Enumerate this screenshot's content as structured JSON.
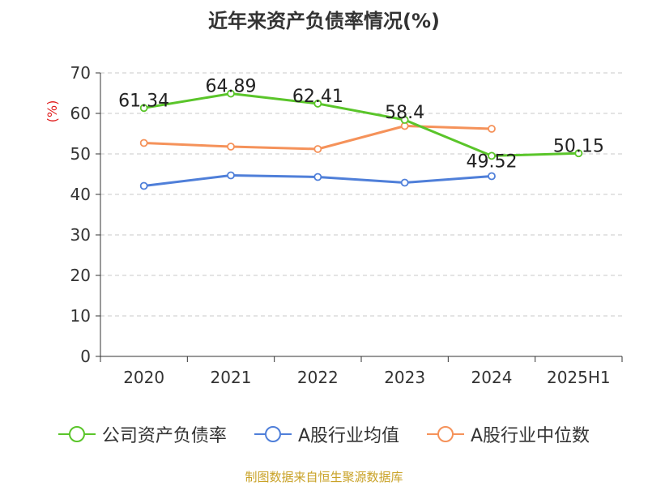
{
  "chart_data": {
    "type": "line",
    "title": "近年来资产负债率情况(%)",
    "ylabel": "(%)",
    "categories": [
      "2020",
      "2021",
      "2022",
      "2023",
      "2024",
      "2025H1"
    ],
    "ylim": [
      0,
      70
    ],
    "yticks": [
      0,
      10,
      20,
      30,
      40,
      50,
      60,
      70
    ],
    "grid": true,
    "legend_position": "bottom",
    "series": [
      {
        "name": "公司资产负债率",
        "color": "#5ac52a",
        "values": [
          61.34,
          64.89,
          62.41,
          58.4,
          49.52,
          50.15
        ],
        "labels": [
          "61.34",
          "64.89",
          "62.41",
          "58.4",
          "49.52",
          "50.15"
        ]
      },
      {
        "name": "A股行业均值",
        "color": "#4f7fd9",
        "values": [
          42.1,
          44.7,
          44.3,
          42.9,
          44.5,
          null
        ]
      },
      {
        "name": "A股行业中位数",
        "color": "#f5925a",
        "values": [
          52.7,
          51.8,
          51.2,
          56.9,
          56.2,
          null
        ]
      }
    ]
  },
  "source_note": "制图数据来自恒生聚源数据库"
}
